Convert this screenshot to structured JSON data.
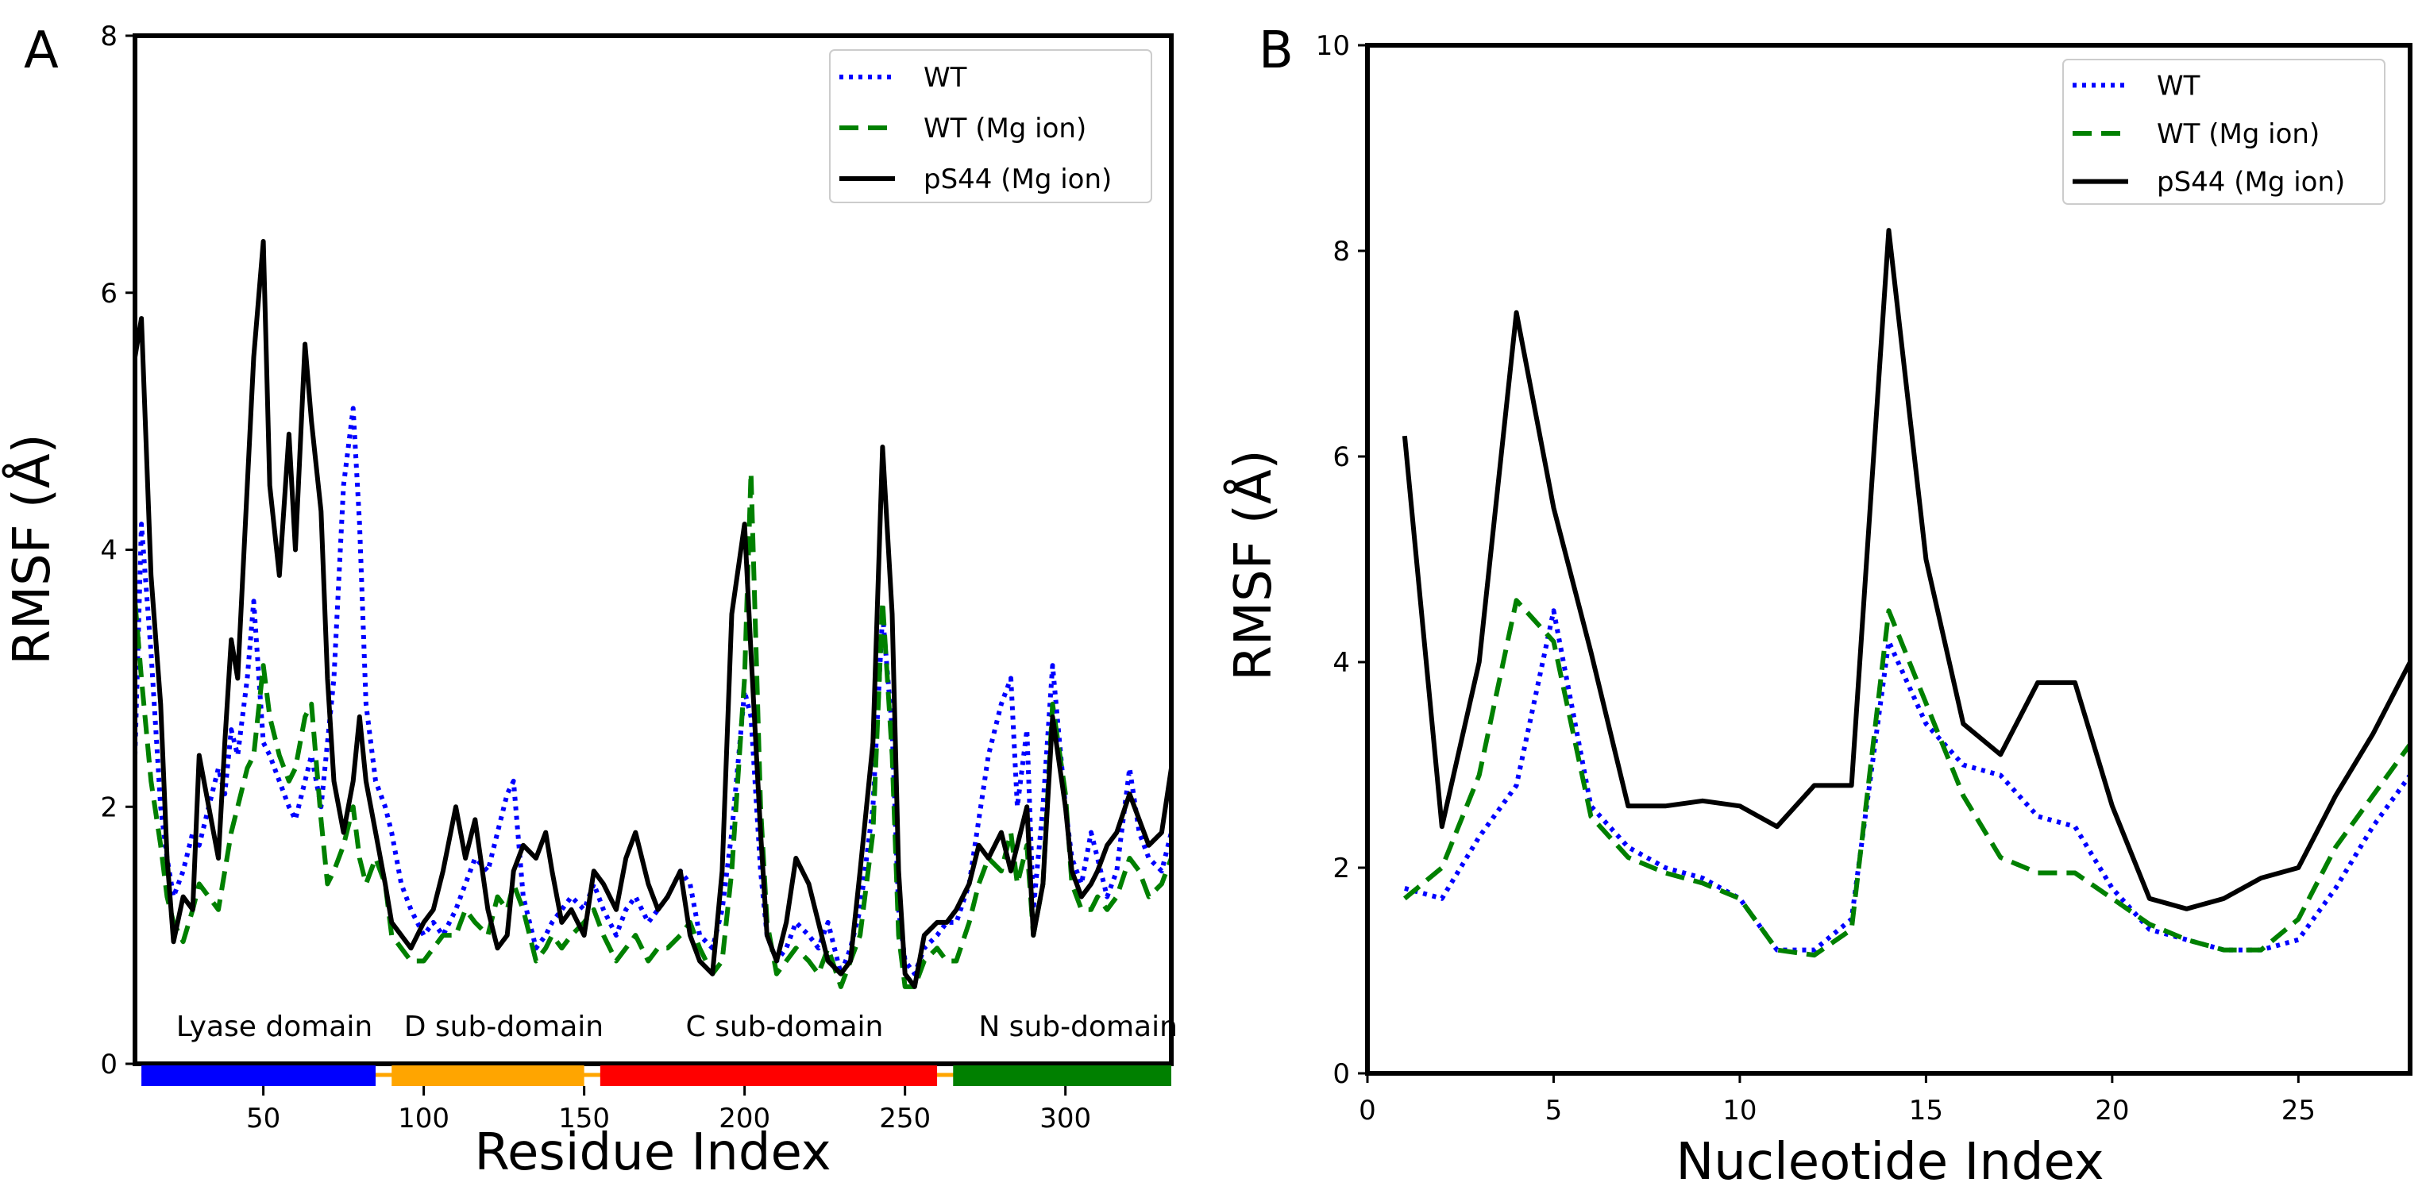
{
  "chart_data": [
    {
      "panel": "A",
      "type": "line",
      "xlabel": "Residue Index",
      "ylabel": "RMSF (Å)",
      "xlim": [
        10,
        333
      ],
      "ylim": [
        0,
        8
      ],
      "xticks": [
        50,
        100,
        150,
        200,
        250,
        300
      ],
      "yticks": [
        0,
        2,
        4,
        6,
        8
      ],
      "legend": {
        "location": "top-right"
      },
      "domain_labels": [
        {
          "label": "Lyase domain",
          "start": 12,
          "end": 85,
          "color": "#0000ff"
        },
        {
          "label": "D sub-domain",
          "start": 90,
          "end": 150,
          "color": "#ffa500"
        },
        {
          "label": "C sub-domain",
          "start": 155,
          "end": 260,
          "color": "#ff0000"
        },
        {
          "label": "N sub-domain",
          "start": 265,
          "end": 333,
          "color": "#008000"
        }
      ],
      "series": [
        {
          "name": "WT",
          "color": "#0000ff",
          "style": "dotted",
          "x": [
            10,
            12,
            15,
            18,
            20,
            22,
            25,
            28,
            30,
            33,
            36,
            38,
            40,
            42,
            45,
            47,
            50,
            52,
            55,
            58,
            60,
            63,
            65,
            68,
            70,
            72,
            75,
            78,
            80,
            82,
            85,
            88,
            90,
            93,
            96,
            100,
            103,
            106,
            110,
            113,
            116,
            120,
            123,
            126,
            128,
            131,
            135,
            138,
            140,
            143,
            146,
            150,
            153,
            156,
            160,
            163,
            166,
            170,
            173,
            176,
            180,
            183,
            186,
            190,
            193,
            196,
            200,
            202,
            205,
            207,
            210,
            213,
            216,
            220,
            223,
            226,
            230,
            233,
            236,
            240,
            243,
            246,
            248,
            250,
            253,
            256,
            260,
            263,
            266,
            270,
            273,
            276,
            280,
            283,
            285,
            288,
            290,
            293,
            296,
            300,
            302,
            305,
            308,
            310,
            313,
            316,
            320,
            323,
            326,
            330,
            333
          ],
          "y": [
            2.4,
            4.2,
            3.2,
            2.0,
            1.6,
            1.3,
            1.5,
            1.8,
            1.7,
            2.0,
            2.3,
            2.1,
            2.6,
            2.4,
            3.0,
            3.6,
            2.5,
            2.4,
            2.2,
            2.0,
            1.9,
            2.2,
            2.4,
            2.0,
            2.5,
            3.0,
            4.5,
            5.1,
            4.2,
            2.8,
            2.2,
            2.0,
            1.8,
            1.4,
            1.2,
            1.0,
            1.1,
            1.0,
            1.2,
            1.4,
            1.6,
            1.5,
            1.8,
            2.1,
            2.2,
            1.3,
            0.9,
            1.0,
            1.1,
            1.2,
            1.3,
            1.2,
            1.4,
            1.2,
            1.0,
            1.2,
            1.3,
            1.1,
            1.2,
            1.3,
            1.5,
            1.4,
            1.0,
            0.9,
            1.2,
            1.8,
            2.9,
            2.7,
            1.5,
            1.0,
            0.8,
            0.9,
            1.1,
            1.0,
            0.9,
            1.1,
            0.7,
            0.9,
            1.2,
            2.0,
            3.5,
            2.6,
            1.2,
            0.8,
            0.7,
            0.9,
            1.0,
            1.1,
            1.1,
            1.4,
            1.9,
            2.4,
            2.8,
            3.0,
            2.0,
            2.6,
            1.2,
            2.0,
            3.1,
            2.0,
            1.6,
            1.4,
            1.8,
            1.6,
            1.3,
            1.5,
            2.3,
            1.8,
            1.6,
            1.5,
            1.8
          ]
        },
        {
          "name": "WT (Mg ion)",
          "color": "#008000",
          "style": "dashed",
          "x": [
            10,
            12,
            15,
            18,
            20,
            22,
            25,
            28,
            30,
            33,
            36,
            38,
            40,
            42,
            45,
            47,
            50,
            52,
            55,
            58,
            60,
            63,
            65,
            68,
            70,
            72,
            75,
            78,
            80,
            82,
            85,
            88,
            90,
            93,
            96,
            100,
            103,
            106,
            110,
            113,
            116,
            120,
            123,
            126,
            128,
            131,
            135,
            138,
            140,
            143,
            146,
            150,
            153,
            156,
            160,
            163,
            166,
            170,
            173,
            176,
            180,
            183,
            186,
            190,
            193,
            196,
            200,
            202,
            205,
            207,
            210,
            213,
            216,
            220,
            223,
            226,
            230,
            233,
            236,
            240,
            243,
            246,
            248,
            250,
            253,
            256,
            260,
            263,
            266,
            270,
            273,
            276,
            280,
            283,
            285,
            288,
            290,
            293,
            296,
            300,
            302,
            305,
            308,
            310,
            313,
            316,
            320,
            323,
            326,
            330,
            333
          ],
          "y": [
            3.6,
            3.0,
            2.2,
            1.7,
            1.3,
            1.1,
            0.95,
            1.2,
            1.4,
            1.3,
            1.2,
            1.5,
            1.8,
            2.0,
            2.3,
            2.4,
            3.1,
            2.7,
            2.4,
            2.2,
            2.3,
            2.7,
            2.8,
            1.9,
            1.4,
            1.5,
            1.7,
            2.0,
            1.6,
            1.4,
            1.6,
            1.4,
            1.0,
            0.9,
            0.8,
            0.8,
            0.9,
            1.0,
            1.0,
            1.2,
            1.1,
            1.0,
            1.3,
            1.2,
            1.4,
            1.2,
            0.8,
            0.9,
            1.0,
            0.9,
            1.0,
            1.1,
            1.2,
            1.0,
            0.8,
            0.9,
            1.0,
            0.8,
            0.9,
            0.9,
            1.0,
            1.1,
            0.9,
            0.7,
            0.8,
            1.5,
            3.0,
            4.6,
            2.0,
            1.1,
            0.7,
            0.8,
            0.9,
            0.8,
            0.7,
            0.9,
            0.6,
            0.8,
            1.0,
            1.8,
            3.6,
            2.4,
            1.0,
            0.6,
            0.6,
            0.8,
            0.9,
            0.8,
            0.8,
            1.1,
            1.4,
            1.6,
            1.5,
            1.8,
            1.4,
            1.7,
            1.0,
            1.4,
            2.8,
            2.1,
            1.4,
            1.2,
            1.2,
            1.3,
            1.2,
            1.3,
            1.6,
            1.5,
            1.3,
            1.4,
            1.6
          ]
        },
        {
          "name": "pS44 (Mg ion)",
          "color": "#000000",
          "style": "solid",
          "x": [
            10,
            12,
            15,
            18,
            20,
            22,
            25,
            28,
            30,
            33,
            36,
            38,
            40,
            42,
            45,
            47,
            50,
            52,
            55,
            58,
            60,
            63,
            65,
            68,
            70,
            72,
            75,
            78,
            80,
            82,
            85,
            88,
            90,
            93,
            96,
            100,
            103,
            106,
            110,
            113,
            116,
            120,
            123,
            126,
            128,
            131,
            135,
            138,
            140,
            143,
            146,
            150,
            153,
            156,
            160,
            163,
            166,
            170,
            173,
            176,
            180,
            183,
            186,
            190,
            193,
            196,
            200,
            202,
            205,
            207,
            210,
            213,
            216,
            220,
            223,
            226,
            230,
            233,
            236,
            240,
            243,
            246,
            248,
            250,
            253,
            256,
            260,
            263,
            266,
            270,
            273,
            276,
            280,
            283,
            285,
            288,
            290,
            293,
            296,
            300,
            302,
            305,
            308,
            310,
            313,
            316,
            320,
            323,
            326,
            330,
            333
          ],
          "y": [
            5.5,
            5.8,
            3.8,
            2.8,
            1.6,
            0.95,
            1.3,
            1.2,
            2.4,
            2.0,
            1.6,
            2.5,
            3.3,
            3.0,
            4.5,
            5.5,
            6.4,
            4.5,
            3.8,
            4.9,
            4.0,
            5.6,
            5.0,
            4.3,
            3.0,
            2.2,
            1.8,
            2.2,
            2.7,
            2.2,
            1.8,
            1.4,
            1.1,
            1.0,
            0.9,
            1.1,
            1.2,
            1.5,
            2.0,
            1.6,
            1.9,
            1.2,
            0.9,
            1.0,
            1.5,
            1.7,
            1.6,
            1.8,
            1.5,
            1.1,
            1.2,
            1.0,
            1.5,
            1.4,
            1.2,
            1.6,
            1.8,
            1.4,
            1.2,
            1.3,
            1.5,
            1.0,
            0.8,
            0.7,
            1.5,
            3.5,
            4.2,
            3.2,
            1.8,
            1.0,
            0.8,
            1.1,
            1.6,
            1.4,
            1.1,
            0.8,
            0.7,
            0.8,
            1.5,
            2.5,
            4.8,
            3.5,
            1.5,
            0.7,
            0.6,
            1.0,
            1.1,
            1.1,
            1.2,
            1.4,
            1.7,
            1.6,
            1.8,
            1.5,
            1.7,
            2.0,
            1.0,
            1.4,
            2.7,
            2.0,
            1.5,
            1.3,
            1.4,
            1.5,
            1.7,
            1.8,
            2.1,
            1.9,
            1.7,
            1.8,
            2.3
          ]
        }
      ]
    },
    {
      "panel": "B",
      "type": "line",
      "xlabel": "Nucleotide Index",
      "ylabel": "RMSF (Å)",
      "xlim": [
        0,
        28
      ],
      "ylim": [
        0,
        10
      ],
      "xticks": [
        0,
        5,
        10,
        15,
        20,
        25
      ],
      "yticks": [
        0,
        2,
        4,
        6,
        8,
        10
      ],
      "legend": {
        "location": "top-right"
      },
      "series": [
        {
          "name": "WT",
          "color": "#0000ff",
          "style": "dotted",
          "x": [
            1,
            2,
            3,
            4,
            5,
            6,
            7,
            8,
            9,
            10,
            11,
            12,
            13,
            14,
            15,
            16,
            17,
            18,
            19,
            20,
            21,
            22,
            23,
            24,
            25,
            26,
            27,
            28
          ],
          "y": [
            1.8,
            1.7,
            2.3,
            2.8,
            4.5,
            2.6,
            2.2,
            2.0,
            1.9,
            1.7,
            1.2,
            1.2,
            1.5,
            4.2,
            3.4,
            3.0,
            2.9,
            2.5,
            2.4,
            1.8,
            1.4,
            1.3,
            1.2,
            1.2,
            1.3,
            1.8,
            2.4,
            2.9
          ]
        },
        {
          "name": "WT (Mg ion)",
          "color": "#008000",
          "style": "dashed",
          "x": [
            1,
            2,
            3,
            4,
            5,
            6,
            7,
            8,
            9,
            10,
            11,
            12,
            13,
            14,
            15,
            16,
            17,
            18,
            19,
            20,
            21,
            22,
            23,
            24,
            25,
            26,
            27,
            28
          ],
          "y": [
            1.7,
            2.0,
            2.9,
            4.6,
            4.2,
            2.5,
            2.1,
            1.95,
            1.85,
            1.7,
            1.2,
            1.15,
            1.4,
            4.5,
            3.6,
            2.7,
            2.1,
            1.95,
            1.95,
            1.7,
            1.45,
            1.3,
            1.2,
            1.2,
            1.5,
            2.2,
            2.7,
            3.2
          ]
        },
        {
          "name": "pS44 (Mg ion)",
          "color": "#000000",
          "style": "solid",
          "x": [
            1,
            2,
            3,
            4,
            5,
            6,
            7,
            8,
            9,
            10,
            11,
            12,
            13,
            14,
            15,
            16,
            17,
            18,
            19,
            20,
            21,
            22,
            23,
            24,
            25,
            26,
            27,
            28
          ],
          "y": [
            6.2,
            2.4,
            4.0,
            7.4,
            5.5,
            4.1,
            2.6,
            2.6,
            2.65,
            2.6,
            2.4,
            2.8,
            2.8,
            8.2,
            5.0,
            3.4,
            3.1,
            3.8,
            3.8,
            2.6,
            1.7,
            1.6,
            1.7,
            1.9,
            2.0,
            2.7,
            3.3,
            4.0
          ]
        }
      ]
    }
  ]
}
